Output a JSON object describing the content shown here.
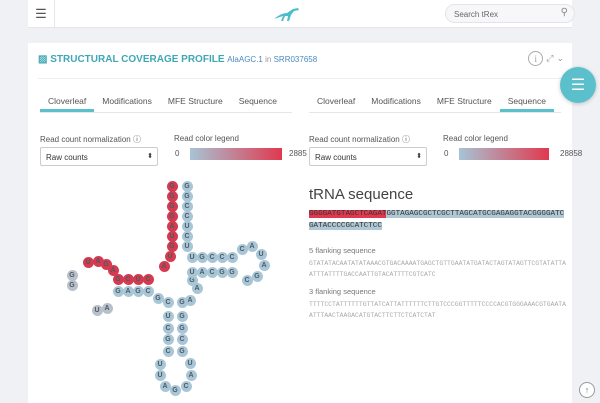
{
  "topbar": {
    "search_placeholder": "Search tRex"
  },
  "panel": {
    "title": "STRUCTURAL COVERAGE PROFILE",
    "trna": "AlaAGC.1",
    "in": "in",
    "sample": "SRR037658"
  },
  "left": {
    "tabs": [
      "Cloverleaf",
      "Modifications",
      "MFE Structure",
      "Sequence"
    ],
    "active": 0,
    "norm_label": "Read count normalization",
    "legend_label": "Read color legend",
    "select": "Raw counts",
    "min": "0",
    "max": "2885"
  },
  "right": {
    "tabs": [
      "Cloverleaf",
      "Modifications",
      "MFE Structure",
      "Sequence"
    ],
    "active": 3,
    "norm_label": "Read count normalization",
    "legend_label": "Read color legend",
    "select": "Raw counts",
    "min": "0",
    "max": "28858"
  },
  "sequence": {
    "heading": "tRNA sequence",
    "covered": "GGGGATGTAGCTCAGAT",
    "rest": "GGTAGAGCGCTCGCTTAGCATGCGAGAGGTACGGGGATCGATACCCCGCATCTCC",
    "flank5_label": "5 flanking sequence",
    "flank5": "GTATATACAATATATAAACGTGACAAAATGAGCTGTTGAATATGATACTAGTATAGTTCGTATATTAATTTATTTTGACCAATTGTACATTTTCGTCATC",
    "flank3_label": "3 flanking sequence",
    "flank3": "TTTTCCTATTTTTTGTTATCATTATTTTTTCTTGTCCCGGTTTTTCCCCACGTGGGAAACGTGAATAATTTAACTAAGACATGTACTTCTTCTCATCTAT"
  },
  "cloverleaf": {
    "nucleotides": [
      [
        "G",
        "r"
      ],
      [
        "G",
        "r"
      ],
      [
        "G",
        "r"
      ],
      [
        "G",
        "r"
      ],
      [
        "A",
        "r"
      ],
      [
        "U",
        "r"
      ],
      [
        "G",
        "r"
      ],
      [
        "U",
        "r"
      ],
      [
        "A",
        "r"
      ],
      [
        "C",
        "r"
      ],
      [
        "U",
        "r"
      ],
      [
        "C",
        "r"
      ],
      [
        "G",
        "r"
      ],
      [
        "A",
        "r"
      ],
      [
        "G",
        "r"
      ],
      [
        "A",
        "r"
      ],
      [
        "U",
        "r"
      ],
      [
        "G",
        "g"
      ],
      [
        "G",
        "g"
      ],
      [
        "U",
        "g"
      ],
      [
        "A",
        "g"
      ],
      [
        "G",
        "b"
      ],
      [
        "A",
        "b"
      ],
      [
        "G",
        "b"
      ],
      [
        "C",
        "b"
      ],
      [
        "G",
        "b"
      ],
      [
        "C",
        "b"
      ],
      [
        "U",
        "b"
      ],
      [
        "C",
        "b"
      ],
      [
        "G",
        "b"
      ],
      [
        "C",
        "b"
      ],
      [
        "U",
        "b"
      ],
      [
        "U",
        "b"
      ],
      [
        "A",
        "b"
      ],
      [
        "G",
        "b"
      ],
      [
        "C",
        "b"
      ],
      [
        "A",
        "b"
      ],
      [
        "U",
        "b"
      ],
      [
        "G",
        "b"
      ],
      [
        "C",
        "b"
      ],
      [
        "G",
        "b"
      ],
      [
        "G",
        "b"
      ],
      [
        "A",
        "b"
      ],
      [
        "G",
        "b"
      ],
      [
        "G",
        "b"
      ],
      [
        "A",
        "b"
      ],
      [
        "U",
        "b"
      ],
      [
        "G",
        "b"
      ],
      [
        "C",
        "b"
      ],
      [
        "C",
        "b"
      ],
      [
        "C",
        "b"
      ],
      [
        "C",
        "b"
      ],
      [
        "A",
        "b"
      ],
      [
        "U",
        "b"
      ],
      [
        "A",
        "b"
      ],
      [
        "G",
        "b"
      ],
      [
        "C",
        "b"
      ],
      [
        "U",
        "b"
      ],
      [
        "A",
        "b"
      ],
      [
        "C",
        "b"
      ],
      [
        "G",
        "b"
      ],
      [
        "G",
        "b"
      ],
      [
        "G",
        "b"
      ],
      [
        "G",
        "b"
      ],
      [
        "C",
        "b"
      ],
      [
        "C",
        "b"
      ],
      [
        "U",
        "b"
      ],
      [
        "C",
        "b"
      ],
      [
        "U",
        "b"
      ],
      [
        "A",
        "b"
      ],
      [
        "C",
        "b"
      ]
    ]
  }
}
